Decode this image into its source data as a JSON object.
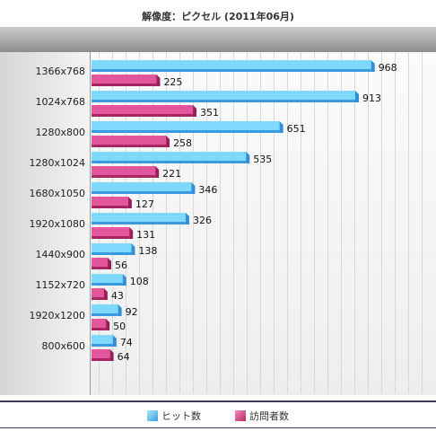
{
  "title": "解像度：ピクセル (2011年06月)",
  "chart_data": {
    "type": "bar",
    "orientation": "horizontal",
    "title": "解像度：ピクセル (2011年06月)",
    "categories": [
      "1366x768",
      "1024x768",
      "1280x800",
      "1280x1024",
      "1680x1050",
      "1920x1080",
      "1440x900",
      "1152x720",
      "1920x1200",
      "800x600"
    ],
    "series": [
      {
        "name": "ヒット数",
        "values": [
          968,
          913,
          651,
          535,
          346,
          326,
          138,
          108,
          92,
          74
        ],
        "color": "#5bc8f5"
      },
      {
        "name": "訪問者数",
        "values": [
          225,
          351,
          258,
          221,
          127,
          131,
          56,
          43,
          50,
          64
        ],
        "color": "#e0559a"
      }
    ],
    "xlim": [
      0,
      1000
    ],
    "grid": true,
    "legend_position": "bottom"
  }
}
